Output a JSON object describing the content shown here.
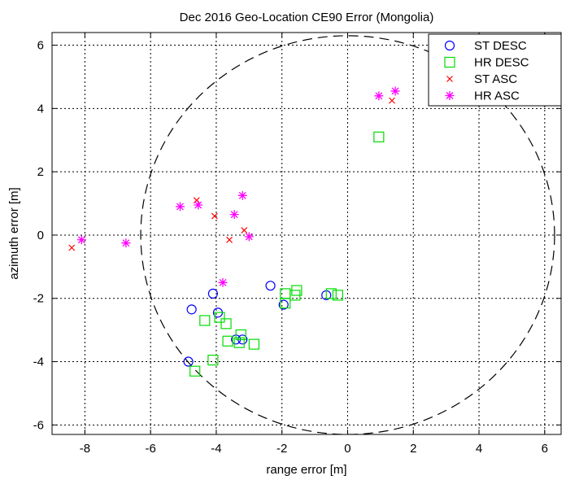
{
  "chart_data": {
    "type": "scatter",
    "title": "Dec 2016 Geo-Location CE90 Error (Mongolia)",
    "xlabel": "range error [m]",
    "ylabel": "azimuth error [m]",
    "xlim": [
      -9,
      6.5
    ],
    "ylim": [
      -6.3,
      6.4
    ],
    "xticks": [
      -8,
      -6,
      -4,
      -2,
      0,
      2,
      4,
      6
    ],
    "yticks": [
      -6,
      -4,
      -2,
      0,
      2,
      4,
      6
    ],
    "grid": true,
    "legend_position": "top-right",
    "circle": {
      "center": [
        0,
        0
      ],
      "radius": 6.3,
      "style": "dashed"
    },
    "series": [
      {
        "name": "ST DESC",
        "marker": "circle",
        "color": "#0000ff",
        "points": [
          [
            -4.85,
            -4.0
          ],
          [
            -4.75,
            -2.35
          ],
          [
            -4.1,
            -1.85
          ],
          [
            -3.95,
            -2.45
          ],
          [
            -3.4,
            -3.3
          ],
          [
            -3.2,
            -3.3
          ],
          [
            -2.35,
            -1.6
          ],
          [
            -1.95,
            -2.2
          ],
          [
            -0.65,
            -1.9
          ]
        ]
      },
      {
        "name": "HR DESC",
        "marker": "square",
        "color": "#00dd00",
        "points": [
          [
            -4.65,
            -4.3
          ],
          [
            -4.35,
            -2.7
          ],
          [
            -4.1,
            -3.95
          ],
          [
            -3.9,
            -2.6
          ],
          [
            -3.7,
            -2.8
          ],
          [
            -3.65,
            -3.35
          ],
          [
            -3.3,
            -3.4
          ],
          [
            -3.25,
            -3.15
          ],
          [
            -2.85,
            -3.45
          ],
          [
            -1.9,
            -1.85
          ],
          [
            -1.9,
            -2.15
          ],
          [
            -1.6,
            -1.9
          ],
          [
            -1.55,
            -1.75
          ],
          [
            -0.5,
            -1.85
          ],
          [
            -0.3,
            -1.9
          ],
          [
            0.95,
            3.1
          ]
        ]
      },
      {
        "name": "ST ASC",
        "marker": "x",
        "color": "#ff0000",
        "points": [
          [
            -8.4,
            -0.4
          ],
          [
            -4.6,
            1.1
          ],
          [
            -4.05,
            0.6
          ],
          [
            -3.6,
            -0.15
          ],
          [
            -3.15,
            0.15
          ],
          [
            1.35,
            4.25
          ]
        ]
      },
      {
        "name": "HR ASC",
        "marker": "star",
        "color": "#ff00ff",
        "points": [
          [
            -8.1,
            -0.15
          ],
          [
            -6.75,
            -0.25
          ],
          [
            -5.1,
            0.9
          ],
          [
            -4.55,
            0.95
          ],
          [
            -3.8,
            -1.5
          ],
          [
            -3.45,
            0.65
          ],
          [
            -3.2,
            1.25
          ],
          [
            -3.0,
            -0.05
          ],
          [
            0.95,
            4.4
          ],
          [
            1.45,
            4.55
          ]
        ]
      }
    ]
  }
}
